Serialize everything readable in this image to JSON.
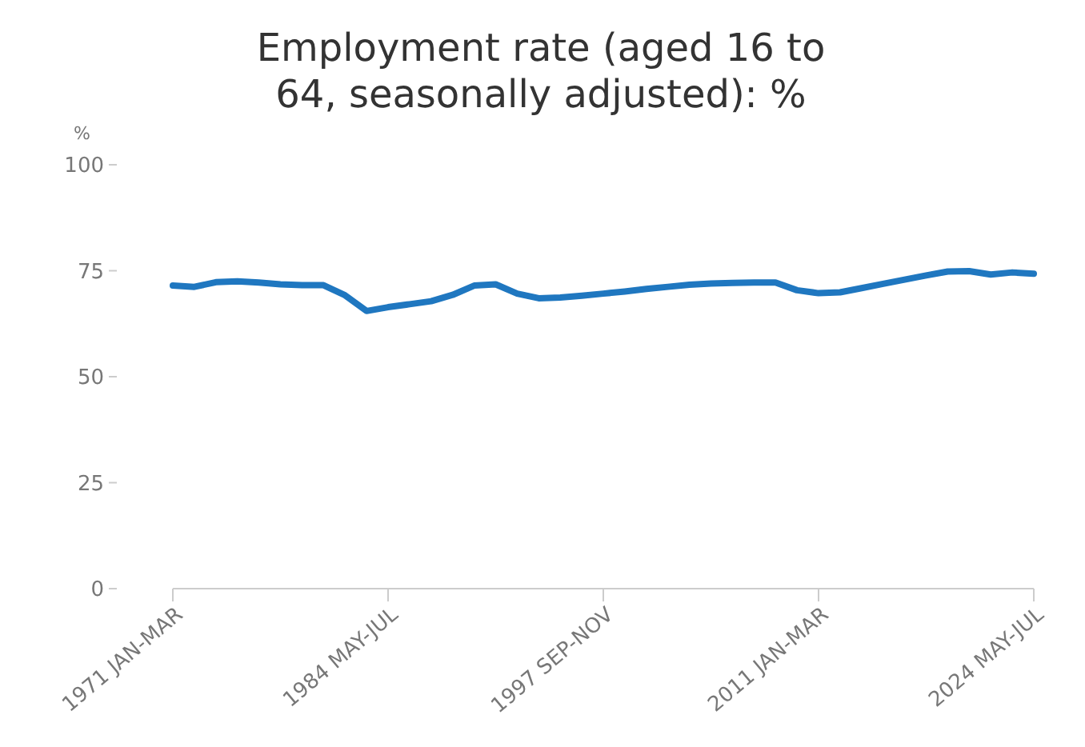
{
  "chart_data": {
    "type": "line",
    "title": "Employment rate (aged 16 to 64, seasonally adjusted): %",
    "ylabel": "%",
    "categories": [
      "1971 JAN-MAR",
      null,
      null,
      null,
      null,
      null,
      null,
      null,
      null,
      null,
      "1984 MAY-JUL",
      null,
      null,
      null,
      null,
      null,
      null,
      null,
      null,
      null,
      "1997 SEP-NOV",
      null,
      null,
      null,
      null,
      null,
      null,
      null,
      null,
      null,
      "2011 JAN-MAR",
      null,
      null,
      null,
      null,
      null,
      null,
      null,
      null,
      null,
      "2024 MAY-JUL"
    ],
    "series": [
      {
        "color": "#1f77c0",
        "values": [
          71.5,
          71.2,
          72.3,
          72.5,
          72.2,
          71.8,
          71.6,
          71.6,
          69.2,
          65.5,
          66.4,
          67.1,
          67.8,
          69.3,
          71.5,
          71.8,
          69.6,
          68.5,
          68.7,
          69.1,
          69.6,
          70.1,
          70.7,
          71.2,
          71.7,
          72.0,
          72.1,
          72.2,
          72.2,
          70.4,
          69.7,
          69.9,
          70.9,
          71.9,
          72.9,
          73.9,
          74.8,
          74.9,
          74.1,
          74.6,
          74.3
        ]
      }
    ],
    "ylim": [
      0,
      100
    ],
    "yticks": [
      0,
      25,
      50,
      75,
      100
    ],
    "marker": "none",
    "line_style": "solid"
  }
}
